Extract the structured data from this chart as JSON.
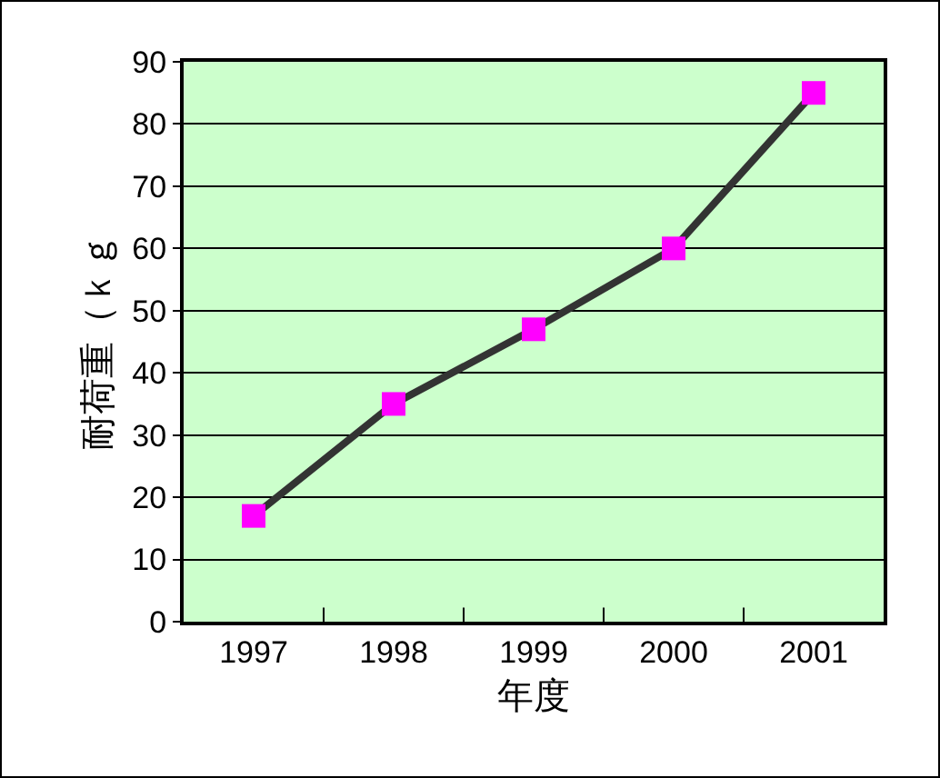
{
  "chart_data": {
    "type": "line",
    "xlabel": "年度",
    "ylabel": "耐荷重（ｋｇ",
    "categories": [
      "1997",
      "1998",
      "1999",
      "2000",
      "2001"
    ],
    "series": [
      {
        "color": "#333333",
        "colors": [
          "#ff00ff",
          "#ff00ff",
          "#ff00ff",
          "#ff00ff",
          "#ff00ff"
        ],
        "values": [
          17,
          35,
          47,
          60,
          85
        ]
      }
    ],
    "marker": "square",
    "ylim": [
      0,
      90
    ],
    "yticks": [
      0,
      10,
      20,
      30,
      40,
      50,
      60,
      70,
      80,
      90
    ],
    "grid": "y"
  }
}
